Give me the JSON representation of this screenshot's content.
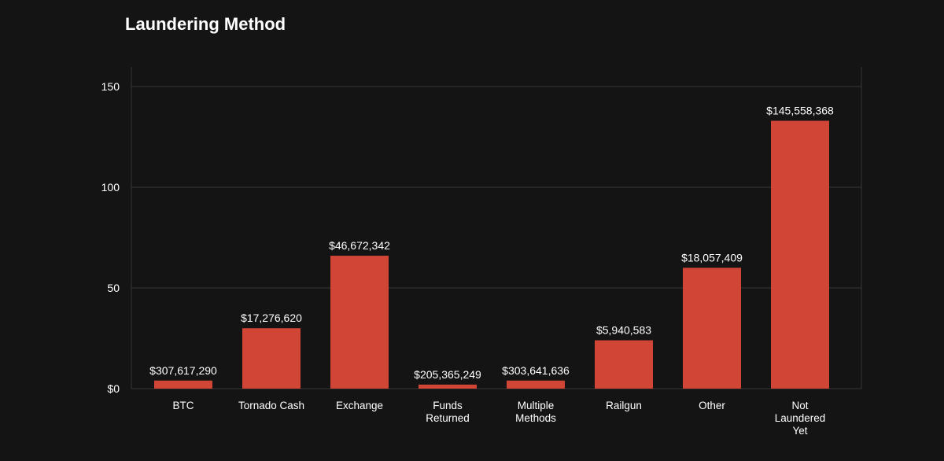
{
  "chart_data": {
    "type": "bar",
    "title": "Laundering Method",
    "xlabel": "",
    "ylabel": "",
    "ylim": [
      0,
      150
    ],
    "yticks": [
      0,
      50,
      100,
      150
    ],
    "ytick_labels": [
      "$0",
      "50",
      "100",
      "150"
    ],
    "grid": true,
    "categories": [
      [
        "BTC"
      ],
      [
        "Tornado Cash"
      ],
      [
        "Exchange"
      ],
      [
        "Funds",
        "Returned"
      ],
      [
        "Multiple",
        "Methods"
      ],
      [
        "Railgun"
      ],
      [
        "Other"
      ],
      [
        "Not",
        "Laundered",
        "Yet"
      ]
    ],
    "values": [
      4,
      30,
      66,
      2,
      4,
      24,
      60,
      133
    ],
    "data_labels": [
      "$307,617,290",
      "$17,276,620",
      "$46,672,342",
      "$205,365,249",
      "$303,641,636",
      "$5,940,583",
      "$18,057,409",
      "$145,558,368"
    ],
    "bar_color": "#d04536",
    "grid_color": "#363636"
  }
}
